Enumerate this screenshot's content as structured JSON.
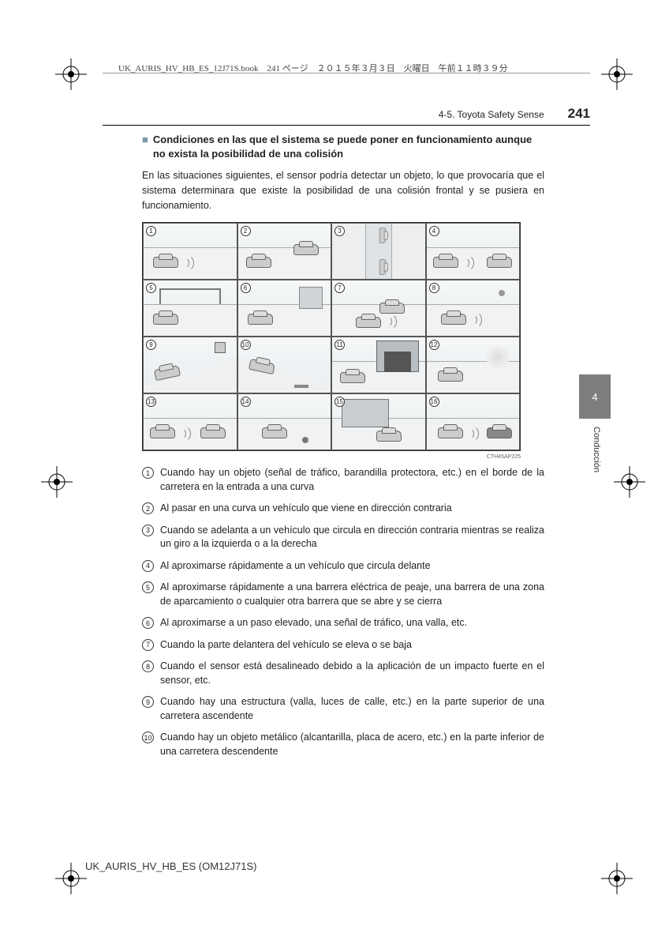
{
  "header": {
    "meta_text": "UK_AURIS_HV_HB_ES_12J71S.book　241 ページ　２０１５年３月３日　火曜日　午前１１時３９分",
    "section": "4-5. Toyota Safety Sense",
    "page_number": "241"
  },
  "side": {
    "tab_number": "4",
    "tab_label": "Conducción"
  },
  "heading": {
    "marker": "■",
    "text": "Condiciones en las que el sistema se puede poner en funcionamiento aunque no exista la posibilidad de una colisión"
  },
  "intro": "En las situaciones siguientes, el sensor podría detectar un objeto, lo que provocaría que el sistema determinara que existe la posibilidad de una colisión frontal y se pusiera en funcionamiento.",
  "diagram": {
    "cells": [
      "1",
      "2",
      "3",
      "4",
      "5",
      "6",
      "7",
      "8",
      "9",
      "10",
      "11",
      "12",
      "13",
      "14",
      "15",
      "16"
    ],
    "code": "CTH45AP225"
  },
  "items": [
    {
      "n": "1",
      "t": "Cuando hay un objeto (señal de tráfico, barandilla protectora, etc.) en el borde de la carretera en la entrada a una curva"
    },
    {
      "n": "2",
      "t": "Al pasar en una curva un vehículo que viene en dirección contraria"
    },
    {
      "n": "3",
      "t": "Cuando se adelanta a un vehículo que circula en dirección contraria mientras se realiza un giro a la izquierda o a la derecha"
    },
    {
      "n": "4",
      "t": "Al aproximarse rápidamente a un vehículo que circula delante"
    },
    {
      "n": "5",
      "t": "Al aproximarse rápidamente a una barrera eléctrica de peaje, una barrera de una zona de aparcamiento o cualquier otra barrera que se abre y se cierra"
    },
    {
      "n": "6",
      "t": "Al aproximarse a un paso elevado, una señal de tráfico, una valla, etc."
    },
    {
      "n": "7",
      "t": "Cuando la parte delantera del vehículo se eleva o se baja"
    },
    {
      "n": "8",
      "t": "Cuando el sensor está desalineado debido a la aplicación de un impacto fuerte en el sensor, etc."
    },
    {
      "n": "9",
      "t": "Cuando hay una estructura (valla, luces de calle, etc.) en la parte superior de una carretera ascendente"
    },
    {
      "n": "10",
      "t": "Cuando hay un objeto metálico (alcantarilla, placa de acero, etc.) en la parte inferior de una carretera descendente"
    }
  ],
  "footer": "UK_AURIS_HV_HB_ES (OM12J71S)"
}
